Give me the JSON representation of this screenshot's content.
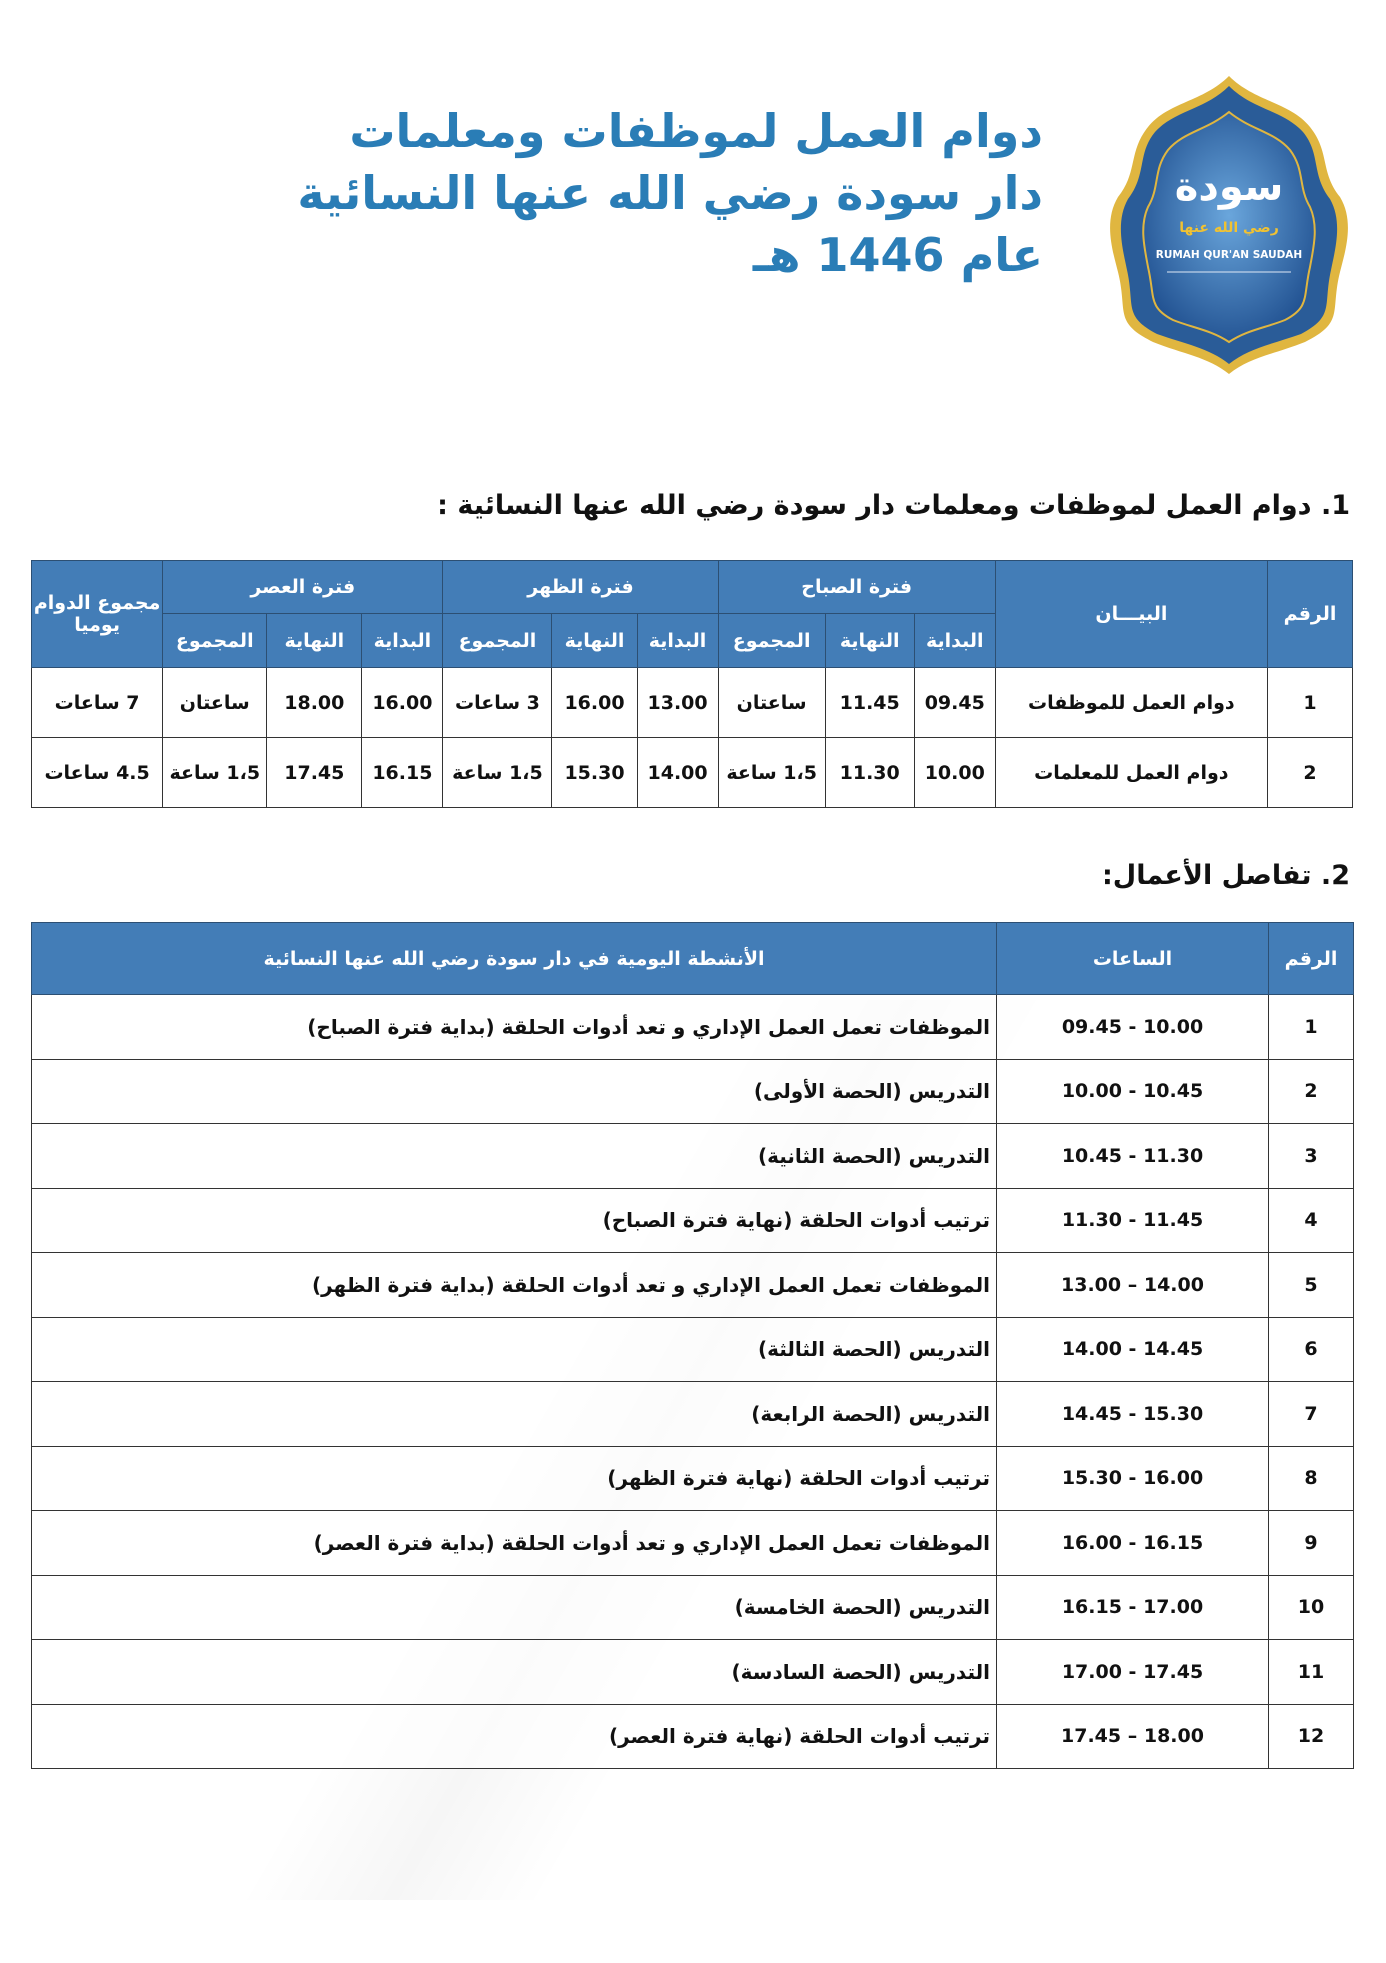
{
  "title_lines": [
    "دوام العمل لموظفات ومعلمات",
    "دار سودة رضي الله عنها النسائية",
    "عام 1446 هـ"
  ],
  "logo": {
    "main": "سودة",
    "sub": "رضي الله عنها",
    "latin": "RUMAH QUR'AN SAUDAH"
  },
  "colors": {
    "header": "#437db7",
    "title": "#2a7db6",
    "logo_gold": "#e0b640",
    "logo_blue": "#1f4f8f"
  },
  "section1": {
    "heading": "1. دوام العمل لموظفات ومعلمات دار سودة رضي الله عنها النسائية :",
    "headers": {
      "num": "الرقم",
      "desc": "البيـــان",
      "morning": "فترة الصباح",
      "noon": "فترة الظهر",
      "asr": "فترة العصر",
      "daily_total": "مجموع الدوام يوميا",
      "start": "البداية",
      "end": "النهاية",
      "total": "المجموع"
    },
    "rows": [
      {
        "num": "1",
        "desc": "دوام العمل للموظفات",
        "m_start": "09.45",
        "m_end": "11.45",
        "m_total": "ساعتان",
        "n_start": "13.00",
        "n_end": "16.00",
        "n_total": "3 ساعات",
        "a_start": "16.00",
        "a_end": "18.00",
        "a_total": "ساعتان",
        "daily": "7 ساعات"
      },
      {
        "num": "2",
        "desc": "دوام العمل للمعلمات",
        "m_start": "10.00",
        "m_end": "11.30",
        "m_total": "1،5 ساعة",
        "n_start": "14.00",
        "n_end": "15.30",
        "n_total": "1،5 ساعة",
        "a_start": "16.15",
        "a_end": "17.45",
        "a_total": "1،5 ساعة",
        "daily": "4.5 ساعات"
      }
    ]
  },
  "section2": {
    "heading": "2. تفاصل الأعمال:",
    "headers": {
      "num": "الرقم",
      "hours": "الساعات",
      "activity": "الأنشطة اليومية في دار سودة رضي الله عنها النسائية"
    },
    "rows": [
      {
        "num": "1",
        "hours": "10.00 - 09.45",
        "activity": "الموظفات تعمل العمل الإداري و تعد أدوات الحلقة (بداية فترة الصباح)"
      },
      {
        "num": "2",
        "hours": "10.45 - 10.00",
        "activity": "التدريس (الحصة الأولى)"
      },
      {
        "num": "3",
        "hours": "11.30 - 10.45",
        "activity": "التدريس (الحصة الثانية)"
      },
      {
        "num": "4",
        "hours": "11.45 - 11.30",
        "activity": "ترتيب أدوات الحلقة (نهاية فترة الصباح)"
      },
      {
        "num": "5",
        "hours": "14.00 – 13.00",
        "activity": "الموظفات تعمل العمل الإداري و تعد أدوات الحلقة (بداية فترة الظهر)"
      },
      {
        "num": "6",
        "hours": "14.45 - 14.00",
        "activity": "التدريس (الحصة الثالثة)"
      },
      {
        "num": "7",
        "hours": "15.30 - 14.45",
        "activity": "التدريس (الحصة الرابعة)"
      },
      {
        "num": "8",
        "hours": "16.00 - 15.30",
        "activity": "ترتيب أدوات الحلقة (نهاية فترة الظهر)"
      },
      {
        "num": "9",
        "hours": "16.15 - 16.00",
        "activity": "الموظفات تعمل العمل الإداري و تعد أدوات الحلقة (بداية فترة العصر)"
      },
      {
        "num": "10",
        "hours": "17.00 - 16.15",
        "activity": "التدريس (الحصة الخامسة)"
      },
      {
        "num": "11",
        "hours": "17.45 - 17.00",
        "activity": "التدريس (الحصة السادسة)"
      },
      {
        "num": "12",
        "hours": "18.00 – 17.45",
        "activity": "ترتيب أدوات الحلقة (نهاية فترة العصر)"
      }
    ]
  }
}
